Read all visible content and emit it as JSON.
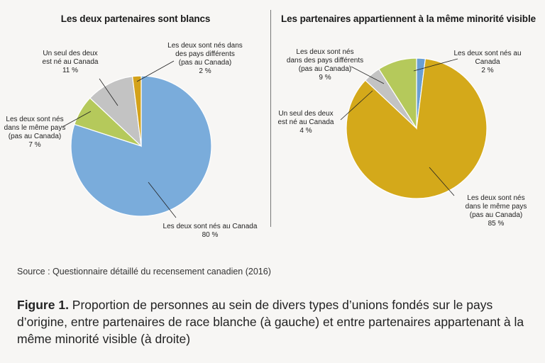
{
  "chart_data": [
    {
      "type": "pie",
      "title": "Les deux partenaires sont blancs",
      "slices": [
        {
          "label": [
            "Les deux sont nés au Canada",
            "80 %"
          ],
          "value": 80,
          "color": "#7aacdb"
        },
        {
          "label": [
            "Les deux sont nés",
            "dans le même pays",
            "(pas au Canada)",
            "7 %"
          ],
          "value": 7,
          "color": "#b5c95b"
        },
        {
          "label": [
            "Un seul des deux",
            "est né au Canada",
            "11 %"
          ],
          "value": 11,
          "color": "#c3c3c3"
        },
        {
          "label": [
            "Les deux sont nés dans",
            "des pays différents",
            "(pas au Canada)",
            "2 %"
          ],
          "value": 2,
          "color": "#d4a21a"
        }
      ]
    },
    {
      "type": "pie",
      "title": "Les partenaires appartiennent à la même minorité visible",
      "slices": [
        {
          "label": [
            "Les deux sont nés au",
            "Canada",
            "2 %"
          ],
          "value": 2,
          "color": "#6a9fd4"
        },
        {
          "label": [
            "Les deux sont nés",
            "dans le même pays",
            "(pas au Canada)",
            "85 %"
          ],
          "value": 85,
          "color": "#d4a91a"
        },
        {
          "label": [
            "Un seul des deux",
            "est né au Canada",
            "4 %"
          ],
          "value": 4,
          "color": "#c3c3c3"
        },
        {
          "label": [
            "Les deux sont nés",
            "dans des pays différents",
            "(pas au Canada)",
            "9 %"
          ],
          "value": 9,
          "color": "#b5c95b"
        }
      ]
    }
  ],
  "source": "Source : Questionnaire détaillé du recensement canadien (2016)",
  "caption": {
    "label": "Figure 1.",
    "text": " Proportion de personnes au sein de divers types d’unions fondés sur le pays d’origine, entre partenaires de race blanche (à gauche) et entre partenaires appartenant à la même minorité visible (à droite)"
  }
}
